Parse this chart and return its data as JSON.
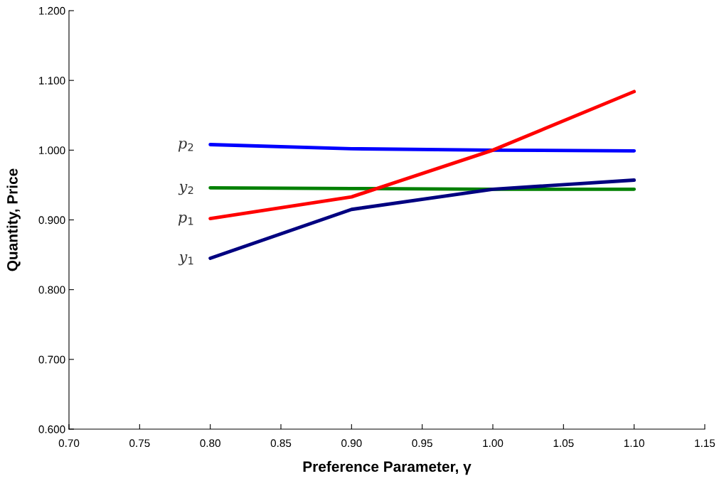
{
  "chart_data": {
    "type": "line",
    "xlabel": "Preference Parameter, γ",
    "ylabel": "Quantity, Price",
    "x": [
      0.8,
      0.9,
      1.0,
      1.1
    ],
    "series": [
      {
        "name": "p$_{2}$",
        "color": "#0000ff",
        "values": [
          1.008,
          1.002,
          1.0,
          0.999
        ]
      },
      {
        "name": "y$_{2}$",
        "color": "#008000",
        "values": [
          0.946,
          0.945,
          0.944,
          0.944
        ]
      },
      {
        "name": "p$_{1}$",
        "color": "#ff0000",
        "values": [
          0.902,
          0.933,
          1.0,
          1.084
        ]
      },
      {
        "name": "y$_{1}$",
        "color": "#000080",
        "values": [
          0.845,
          0.915,
          0.944,
          0.957
        ]
      }
    ],
    "xlim": [
      0.7,
      1.15
    ],
    "xticks": [
      {
        "value": 0.7,
        "label": "0.70"
      },
      {
        "value": 0.75,
        "label": "0.75"
      },
      {
        "value": 0.8,
        "label": "0.80"
      },
      {
        "value": 0.85,
        "label": "0.85"
      },
      {
        "value": 0.9,
        "label": "0.90"
      },
      {
        "value": 0.95,
        "label": "0.95"
      },
      {
        "value": 1.0,
        "label": "1.00"
      },
      {
        "value": 1.05,
        "label": "1.05"
      },
      {
        "value": 1.1,
        "label": "1.10"
      },
      {
        "value": 1.15,
        "label": "1.15"
      }
    ],
    "ylim": [
      0.6,
      1.2
    ],
    "yticks": [
      {
        "value": 0.6,
        "label": "0.600"
      },
      {
        "value": 0.7,
        "label": "0.700"
      },
      {
        "value": 0.8,
        "label": "0.800"
      },
      {
        "value": 0.9,
        "label": "0.900"
      },
      {
        "value": 1.0,
        "label": "1.000"
      },
      {
        "value": 1.1,
        "label": "1.100"
      },
      {
        "value": 1.2,
        "label": "1.200"
      }
    ],
    "grid": false,
    "legend": false,
    "marker": "none",
    "line_style": "solid"
  }
}
